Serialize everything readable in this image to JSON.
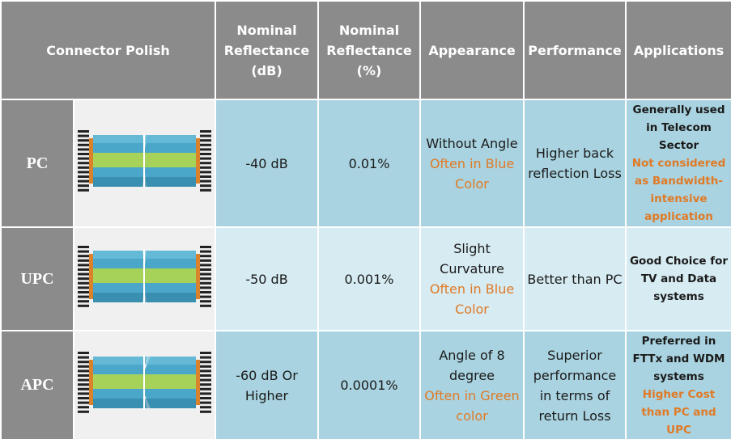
{
  "header": {
    "connector_polish": "Connector Polish",
    "columns": [
      "Nominal Reflectance (dB)",
      "Nominal Reflectance (%)",
      "Appearance",
      "Performance",
      "Applications"
    ]
  },
  "rows": [
    {
      "label": "PC",
      "reflectance_db": "-40 dB",
      "reflectance_pct": "0.01%",
      "appearance": "Without Angle",
      "appearance_note": "Often in Blue Color",
      "performance": "Higher back reflection Loss",
      "applications": "Generally used in Telecom Sector",
      "applications_note": "Not considered as Bandwidth-intensive application"
    },
    {
      "label": "UPC",
      "reflectance_db": "-50 dB",
      "reflectance_pct": "0.001%",
      "appearance": "Slight Curvature",
      "appearance_note": "Often in Blue Color",
      "performance": "Better than PC",
      "applications": "Good Choice for TV and Data systems",
      "applications_note": null
    },
    {
      "label": "APC",
      "reflectance_db": "-60 dB Or Higher",
      "reflectance_pct": "0.0001%",
      "appearance": "Angle of 8 degree",
      "appearance_note": "Often in Green color",
      "performance": "Superior performance in terms of return Loss",
      "applications": "Preferred in FTTx and WDM systems",
      "applications_note": "Higher Cost than PC and UPC"
    }
  ]
}
